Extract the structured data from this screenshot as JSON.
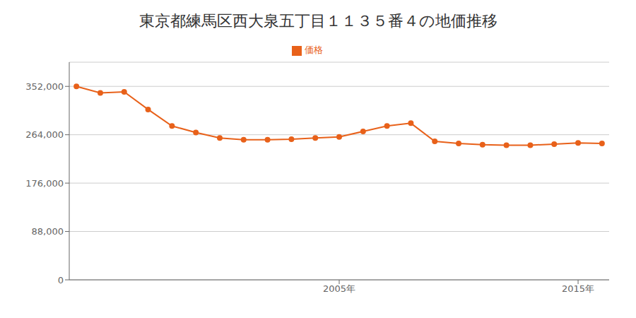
{
  "chart_data": {
    "type": "line",
    "title": "東京都練馬区西大泉五丁目１１３５番４の地価推移",
    "x": [
      1994,
      1995,
      1996,
      1997,
      1998,
      1999,
      2000,
      2001,
      2002,
      2003,
      2004,
      2005,
      2006,
      2007,
      2008,
      2009,
      2010,
      2011,
      2012,
      2013,
      2014,
      2015,
      2016
    ],
    "series": [
      {
        "name": "価格",
        "color": "#e8611a",
        "marker": "circle",
        "values": [
          352000,
          340000,
          342000,
          310000,
          280000,
          268000,
          258000,
          255000,
          255000,
          256000,
          258000,
          260000,
          270000,
          280000,
          285000,
          252000,
          248000,
          246000,
          245000,
          245000,
          247000,
          249000,
          248000
        ]
      }
    ],
    "xlim": [
      1993.7,
      2016.3
    ],
    "xticks": [
      {
        "value": 2005,
        "label": "2005年"
      },
      {
        "value": 2015,
        "label": "2015年"
      }
    ],
    "ylim": [
      0,
      396000
    ],
    "yticks": [
      0,
      {
        "value": 88000,
        "label": "88,000"
      },
      {
        "value": 176000,
        "label": "176,000"
      },
      {
        "value": 264000,
        "label": "264,000"
      },
      {
        "value": 352000,
        "label": "352,000"
      }
    ],
    "grid": "y",
    "legend": "top"
  }
}
